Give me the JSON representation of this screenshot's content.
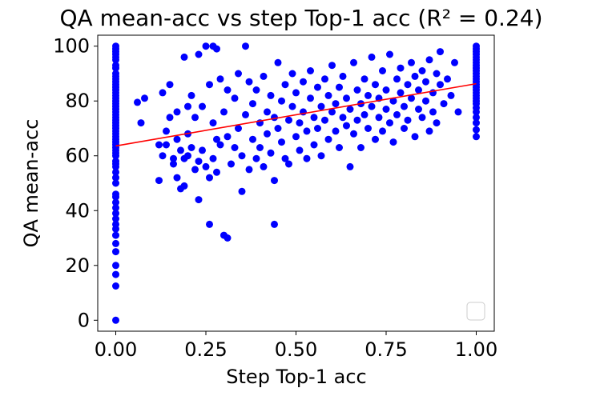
{
  "chart_data": {
    "type": "scatter",
    "title": "QA mean-acc vs step Top-1 acc (R² = 0.24)",
    "xlabel": "Step Top-1 acc",
    "ylabel": "QA mean-acc",
    "xlim": [
      -0.05,
      1.05
    ],
    "ylim": [
      -4,
      104
    ],
    "x_ticks": [
      0.0,
      0.25,
      0.5,
      0.75,
      1.0
    ],
    "x_tick_labels": [
      "0.00",
      "0.25",
      "0.50",
      "0.75",
      "1.00"
    ],
    "y_ticks": [
      0,
      20,
      40,
      60,
      80,
      100
    ],
    "y_tick_labels": [
      "0",
      "20",
      "40",
      "60",
      "80",
      "100"
    ],
    "grid": false,
    "legend": {
      "placement": "lower-right",
      "entries": []
    },
    "marker_color": "#0000ff",
    "fit_color": "#ff0000",
    "fit_line": {
      "x": [
        0.0,
        1.0
      ],
      "y": [
        63.6,
        86.3
      ]
    },
    "points": [
      {
        "x": 0,
        "y": 0
      },
      {
        "x": 0,
        "y": 12.5
      },
      {
        "x": 0,
        "y": 16.7
      },
      {
        "x": 0,
        "y": 20
      },
      {
        "x": 0,
        "y": 25
      },
      {
        "x": 0,
        "y": 28
      },
      {
        "x": 0,
        "y": 31
      },
      {
        "x": 0,
        "y": 33.3
      },
      {
        "x": 0,
        "y": 35
      },
      {
        "x": 0,
        "y": 37
      },
      {
        "x": 0,
        "y": 39
      },
      {
        "x": 0,
        "y": 41
      },
      {
        "x": 0,
        "y": 43
      },
      {
        "x": 0,
        "y": 45
      },
      {
        "x": 0,
        "y": 46
      },
      {
        "x": 0,
        "y": 50
      },
      {
        "x": 0,
        "y": 52
      },
      {
        "x": 0,
        "y": 54
      },
      {
        "x": 0,
        "y": 56
      },
      {
        "x": 0,
        "y": 57
      },
      {
        "x": 0,
        "y": 58
      },
      {
        "x": 0,
        "y": 60
      },
      {
        "x": 0,
        "y": 61
      },
      {
        "x": 0,
        "y": 62
      },
      {
        "x": 0,
        "y": 63
      },
      {
        "x": 0,
        "y": 64
      },
      {
        "x": 0,
        "y": 65
      },
      {
        "x": 0,
        "y": 66
      },
      {
        "x": 0,
        "y": 67
      },
      {
        "x": 0,
        "y": 68
      },
      {
        "x": 0,
        "y": 69
      },
      {
        "x": 0,
        "y": 70
      },
      {
        "x": 0,
        "y": 71
      },
      {
        "x": 0,
        "y": 72
      },
      {
        "x": 0,
        "y": 73
      },
      {
        "x": 0,
        "y": 74
      },
      {
        "x": 0,
        "y": 75
      },
      {
        "x": 0,
        "y": 76
      },
      {
        "x": 0,
        "y": 77
      },
      {
        "x": 0,
        "y": 78
      },
      {
        "x": 0,
        "y": 79
      },
      {
        "x": 0,
        "y": 80
      },
      {
        "x": 0,
        "y": 81
      },
      {
        "x": 0,
        "y": 82
      },
      {
        "x": 0,
        "y": 83
      },
      {
        "x": 0,
        "y": 84
      },
      {
        "x": 0,
        "y": 85
      },
      {
        "x": 0,
        "y": 86
      },
      {
        "x": 0,
        "y": 87
      },
      {
        "x": 0,
        "y": 88
      },
      {
        "x": 0,
        "y": 89
      },
      {
        "x": 0,
        "y": 90
      },
      {
        "x": 0,
        "y": 92
      },
      {
        "x": 0,
        "y": 93
      },
      {
        "x": 0,
        "y": 95
      },
      {
        "x": 0,
        "y": 96
      },
      {
        "x": 0,
        "y": 97
      },
      {
        "x": 0,
        "y": 98
      },
      {
        "x": 0,
        "y": 99
      },
      {
        "x": 0,
        "y": 100
      },
      {
        "x": 1,
        "y": 67
      },
      {
        "x": 1,
        "y": 69.5
      },
      {
        "x": 1,
        "y": 72
      },
      {
        "x": 1,
        "y": 74
      },
      {
        "x": 1,
        "y": 76
      },
      {
        "x": 1,
        "y": 77.5
      },
      {
        "x": 1,
        "y": 79
      },
      {
        "x": 1,
        "y": 80
      },
      {
        "x": 1,
        "y": 81
      },
      {
        "x": 1,
        "y": 82
      },
      {
        "x": 1,
        "y": 83
      },
      {
        "x": 1,
        "y": 84
      },
      {
        "x": 1,
        "y": 85
      },
      {
        "x": 1,
        "y": 86
      },
      {
        "x": 1,
        "y": 87
      },
      {
        "x": 1,
        "y": 88
      },
      {
        "x": 1,
        "y": 89
      },
      {
        "x": 1,
        "y": 90
      },
      {
        "x": 1,
        "y": 91
      },
      {
        "x": 1,
        "y": 92
      },
      {
        "x": 1,
        "y": 93
      },
      {
        "x": 1,
        "y": 94
      },
      {
        "x": 1,
        "y": 95
      },
      {
        "x": 1,
        "y": 96
      },
      {
        "x": 1,
        "y": 97
      },
      {
        "x": 1,
        "y": 98
      },
      {
        "x": 1,
        "y": 99
      },
      {
        "x": 1,
        "y": 100
      },
      {
        "x": 0.06,
        "y": 79.5
      },
      {
        "x": 0.07,
        "y": 72
      },
      {
        "x": 0.08,
        "y": 81
      },
      {
        "x": 0.12,
        "y": 51
      },
      {
        "x": 0.12,
        "y": 64
      },
      {
        "x": 0.13,
        "y": 60
      },
      {
        "x": 0.13,
        "y": 83
      },
      {
        "x": 0.14,
        "y": 64
      },
      {
        "x": 0.14,
        "y": 69
      },
      {
        "x": 0.15,
        "y": 86
      },
      {
        "x": 0.15,
        "y": 74
      },
      {
        "x": 0.16,
        "y": 57
      },
      {
        "x": 0.16,
        "y": 59
      },
      {
        "x": 0.17,
        "y": 52
      },
      {
        "x": 0.17,
        "y": 66
      },
      {
        "x": 0.17,
        "y": 76
      },
      {
        "x": 0.18,
        "y": 48
      },
      {
        "x": 0.18,
        "y": 62
      },
      {
        "x": 0.19,
        "y": 49
      },
      {
        "x": 0.19,
        "y": 59
      },
      {
        "x": 0.19,
        "y": 96
      },
      {
        "x": 0.2,
        "y": 60
      },
      {
        "x": 0.2,
        "y": 68
      },
      {
        "x": 0.2,
        "y": 78
      },
      {
        "x": 0.21,
        "y": 63
      },
      {
        "x": 0.21,
        "y": 82
      },
      {
        "x": 0.22,
        "y": 55
      },
      {
        "x": 0.22,
        "y": 74
      },
      {
        "x": 0.23,
        "y": 58
      },
      {
        "x": 0.23,
        "y": 97
      },
      {
        "x": 0.23,
        "y": 44
      },
      {
        "x": 0.24,
        "y": 62
      },
      {
        "x": 0.24,
        "y": 78
      },
      {
        "x": 0.25,
        "y": 100
      },
      {
        "x": 0.25,
        "y": 56
      },
      {
        "x": 0.26,
        "y": 35
      },
      {
        "x": 0.26,
        "y": 86
      },
      {
        "x": 0.26,
        "y": 52
      },
      {
        "x": 0.27,
        "y": 100
      },
      {
        "x": 0.27,
        "y": 59
      },
      {
        "x": 0.27,
        "y": 72
      },
      {
        "x": 0.28,
        "y": 99
      },
      {
        "x": 0.28,
        "y": 66
      },
      {
        "x": 0.28,
        "y": 54
      },
      {
        "x": 0.29,
        "y": 88
      },
      {
        "x": 0.29,
        "y": 64
      },
      {
        "x": 0.3,
        "y": 31
      },
      {
        "x": 0.3,
        "y": 76
      },
      {
        "x": 0.31,
        "y": 30
      },
      {
        "x": 0.31,
        "y": 84
      },
      {
        "x": 0.31,
        "y": 67
      },
      {
        "x": 0.32,
        "y": 57
      },
      {
        "x": 0.33,
        "y": 81
      },
      {
        "x": 0.33,
        "y": 63
      },
      {
        "x": 0.34,
        "y": 90
      },
      {
        "x": 0.34,
        "y": 70
      },
      {
        "x": 0.35,
        "y": 47
      },
      {
        "x": 0.35,
        "y": 60
      },
      {
        "x": 0.36,
        "y": 100
      },
      {
        "x": 0.36,
        "y": 75
      },
      {
        "x": 0.37,
        "y": 55
      },
      {
        "x": 0.37,
        "y": 87
      },
      {
        "x": 0.38,
        "y": 66
      },
      {
        "x": 0.38,
        "y": 79
      },
      {
        "x": 0.39,
        "y": 59
      },
      {
        "x": 0.39,
        "y": 84
      },
      {
        "x": 0.4,
        "y": 72
      },
      {
        "x": 0.4,
        "y": 63
      },
      {
        "x": 0.41,
        "y": 89
      },
      {
        "x": 0.41,
        "y": 56
      },
      {
        "x": 0.42,
        "y": 76
      },
      {
        "x": 0.42,
        "y": 68
      },
      {
        "x": 0.43,
        "y": 82
      },
      {
        "x": 0.43,
        "y": 61
      },
      {
        "x": 0.44,
        "y": 35
      },
      {
        "x": 0.44,
        "y": 74
      },
      {
        "x": 0.44,
        "y": 51
      },
      {
        "x": 0.45,
        "y": 94
      },
      {
        "x": 0.45,
        "y": 70
      },
      {
        "x": 0.46,
        "y": 80
      },
      {
        "x": 0.46,
        "y": 65
      },
      {
        "x": 0.47,
        "y": 59
      },
      {
        "x": 0.47,
        "y": 86
      },
      {
        "x": 0.48,
        "y": 73
      },
      {
        "x": 0.48,
        "y": 57
      },
      {
        "x": 0.49,
        "y": 78
      },
      {
        "x": 0.49,
        "y": 90
      },
      {
        "x": 0.5,
        "y": 67
      },
      {
        "x": 0.5,
        "y": 83
      },
      {
        "x": 0.51,
        "y": 72
      },
      {
        "x": 0.51,
        "y": 62
      },
      {
        "x": 0.52,
        "y": 87
      },
      {
        "x": 0.52,
        "y": 76
      },
      {
        "x": 0.53,
        "y": 69
      },
      {
        "x": 0.53,
        "y": 59
      },
      {
        "x": 0.54,
        "y": 81
      },
      {
        "x": 0.54,
        "y": 91
      },
      {
        "x": 0.55,
        "y": 74
      },
      {
        "x": 0.55,
        "y": 64
      },
      {
        "x": 0.56,
        "y": 85
      },
      {
        "x": 0.56,
        "y": 70
      },
      {
        "x": 0.57,
        "y": 78
      },
      {
        "x": 0.57,
        "y": 60
      },
      {
        "x": 0.58,
        "y": 88
      },
      {
        "x": 0.58,
        "y": 73
      },
      {
        "x": 0.59,
        "y": 66
      },
      {
        "x": 0.59,
        "y": 82
      },
      {
        "x": 0.6,
        "y": 76
      },
      {
        "x": 0.6,
        "y": 93
      },
      {
        "x": 0.61,
        "y": 69
      },
      {
        "x": 0.61,
        "y": 79
      },
      {
        "x": 0.62,
        "y": 85
      },
      {
        "x": 0.62,
        "y": 63
      },
      {
        "x": 0.63,
        "y": 74
      },
      {
        "x": 0.63,
        "y": 89
      },
      {
        "x": 0.64,
        "y": 71
      },
      {
        "x": 0.64,
        "y": 81
      },
      {
        "x": 0.65,
        "y": 56
      },
      {
        "x": 0.65,
        "y": 77
      },
      {
        "x": 0.66,
        "y": 94
      },
      {
        "x": 0.66,
        "y": 68
      },
      {
        "x": 0.67,
        "y": 84
      },
      {
        "x": 0.67,
        "y": 73
      },
      {
        "x": 0.68,
        "y": 79
      },
      {
        "x": 0.68,
        "y": 63
      },
      {
        "x": 0.69,
        "y": 88
      },
      {
        "x": 0.69,
        "y": 75
      },
      {
        "x": 0.7,
        "y": 82
      },
      {
        "x": 0.7,
        "y": 70
      },
      {
        "x": 0.71,
        "y": 96
      },
      {
        "x": 0.71,
        "y": 78
      },
      {
        "x": 0.72,
        "y": 66
      },
      {
        "x": 0.72,
        "y": 86
      },
      {
        "x": 0.73,
        "y": 74
      },
      {
        "x": 0.73,
        "y": 81
      },
      {
        "x": 0.74,
        "y": 91
      },
      {
        "x": 0.74,
        "y": 69
      },
      {
        "x": 0.75,
        "y": 77
      },
      {
        "x": 0.75,
        "y": 84
      },
      {
        "x": 0.76,
        "y": 72
      },
      {
        "x": 0.76,
        "y": 97
      },
      {
        "x": 0.77,
        "y": 80
      },
      {
        "x": 0.77,
        "y": 65
      },
      {
        "x": 0.78,
        "y": 88
      },
      {
        "x": 0.78,
        "y": 75
      },
      {
        "x": 0.79,
        "y": 83
      },
      {
        "x": 0.79,
        "y": 92
      },
      {
        "x": 0.8,
        "y": 78
      },
      {
        "x": 0.8,
        "y": 70
      },
      {
        "x": 0.81,
        "y": 86
      },
      {
        "x": 0.81,
        "y": 73
      },
      {
        "x": 0.82,
        "y": 94
      },
      {
        "x": 0.82,
        "y": 81
      },
      {
        "x": 0.83,
        "y": 67
      },
      {
        "x": 0.83,
        "y": 89
      },
      {
        "x": 0.84,
        "y": 77
      },
      {
        "x": 0.84,
        "y": 84
      },
      {
        "x": 0.85,
        "y": 91
      },
      {
        "x": 0.85,
        "y": 74
      },
      {
        "x": 0.86,
        "y": 80
      },
      {
        "x": 0.86,
        "y": 87
      },
      {
        "x": 0.87,
        "y": 69
      },
      {
        "x": 0.87,
        "y": 95
      },
      {
        "x": 0.88,
        "y": 76
      },
      {
        "x": 0.88,
        "y": 83
      },
      {
        "x": 0.89,
        "y": 90
      },
      {
        "x": 0.89,
        "y": 72
      },
      {
        "x": 0.9,
        "y": 98
      },
      {
        "x": 0.9,
        "y": 86
      },
      {
        "x": 0.91,
        "y": 79
      },
      {
        "x": 0.92,
        "y": 88
      },
      {
        "x": 0.93,
        "y": 82
      },
      {
        "x": 0.94,
        "y": 94
      },
      {
        "x": 0.95,
        "y": 76
      }
    ]
  }
}
